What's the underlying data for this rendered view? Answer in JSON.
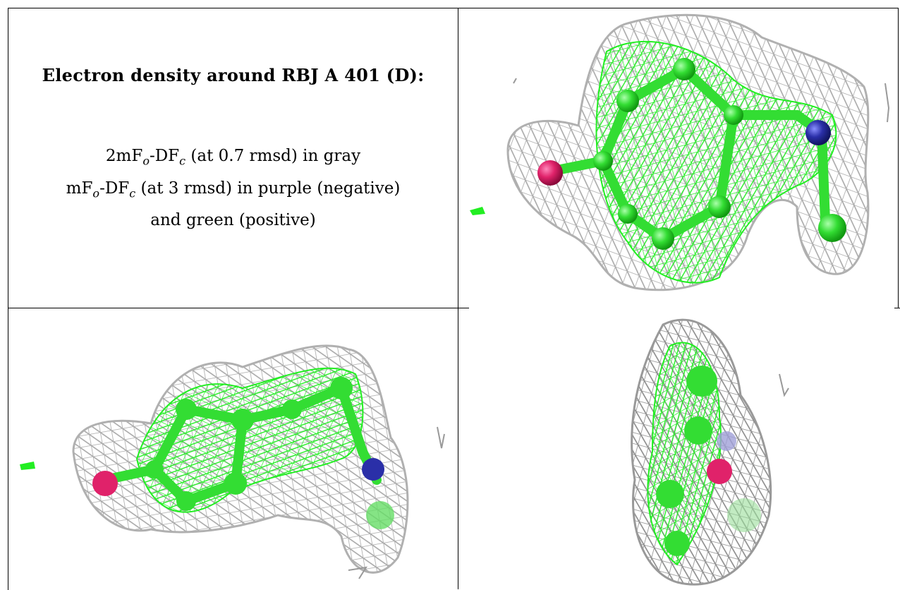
{
  "caption": {
    "title": "Electron density around RBJ A 401 (D):",
    "line1": "2mF",
    "line1_sub_o": "o",
    "line1_mid": "-DF",
    "line1_sub_c": "c",
    "line1_rest": " (at 0.7 rmsd) in gray",
    "line2": "mF",
    "line2_sub_o": "o",
    "line2_mid": "-DF",
    "line2_sub_c": "c",
    "line2_rest": " (at 3 rmsd) in purple (negative)",
    "line3": "and green (positive)"
  },
  "colors": {
    "mesh_gray": "#9a9a9a",
    "mesh_green": "#22ee22",
    "atom_green": "#33dd33",
    "oxygen": "#e0226a",
    "nitrogen": "#2a2fa8"
  },
  "panels": [
    {
      "name": "view-top-right"
    },
    {
      "name": "view-bottom-left"
    },
    {
      "name": "view-bottom-right"
    }
  ]
}
